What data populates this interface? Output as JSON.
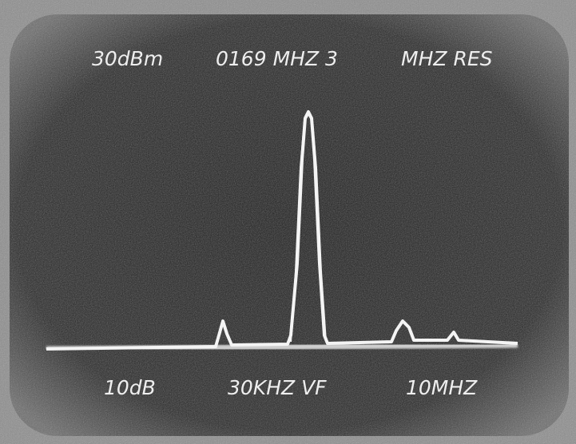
{
  "screen": {
    "top_labels": [
      "30dBm",
      "0169 MHZ 3",
      "MHZ RES"
    ],
    "bottom_labels": [
      "10dB",
      "30KHZ VF",
      "10MHZ"
    ]
  }
}
